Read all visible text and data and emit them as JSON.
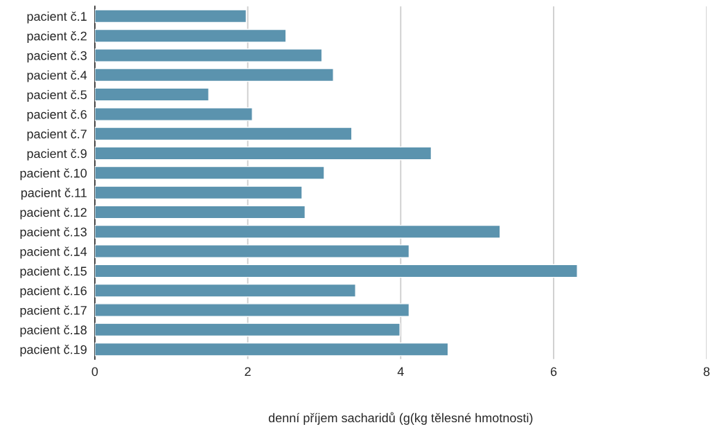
{
  "chart_data": {
    "type": "bar",
    "orientation": "horizontal",
    "categories": [
      "pacient č.1",
      "pacient č.2",
      "pacient č.3",
      "pacient č.4",
      "pacient č.5",
      "pacient č.6",
      "pacient č.7",
      "pacient č.9",
      "pacient č.10",
      "pacient č.11",
      "pacient č.12",
      "pacient č.13",
      "pacient č.14",
      "pacient č.15",
      "pacient č.16",
      "pacient č.17",
      "pacient č.18",
      "pacient č.19"
    ],
    "values": [
      1.98,
      2.5,
      2.97,
      3.12,
      1.49,
      2.06,
      3.36,
      4.4,
      3.0,
      2.71,
      2.75,
      5.3,
      4.11,
      6.31,
      3.41,
      4.11,
      3.99,
      4.62
    ],
    "color": "#5b93ae",
    "xlabel": "denní příjem sacharidů (g(kg tělesné hmotnosti)",
    "xlim": [
      0,
      8
    ],
    "xticks": [
      0,
      2,
      4,
      6,
      8
    ],
    "grid": "x"
  }
}
